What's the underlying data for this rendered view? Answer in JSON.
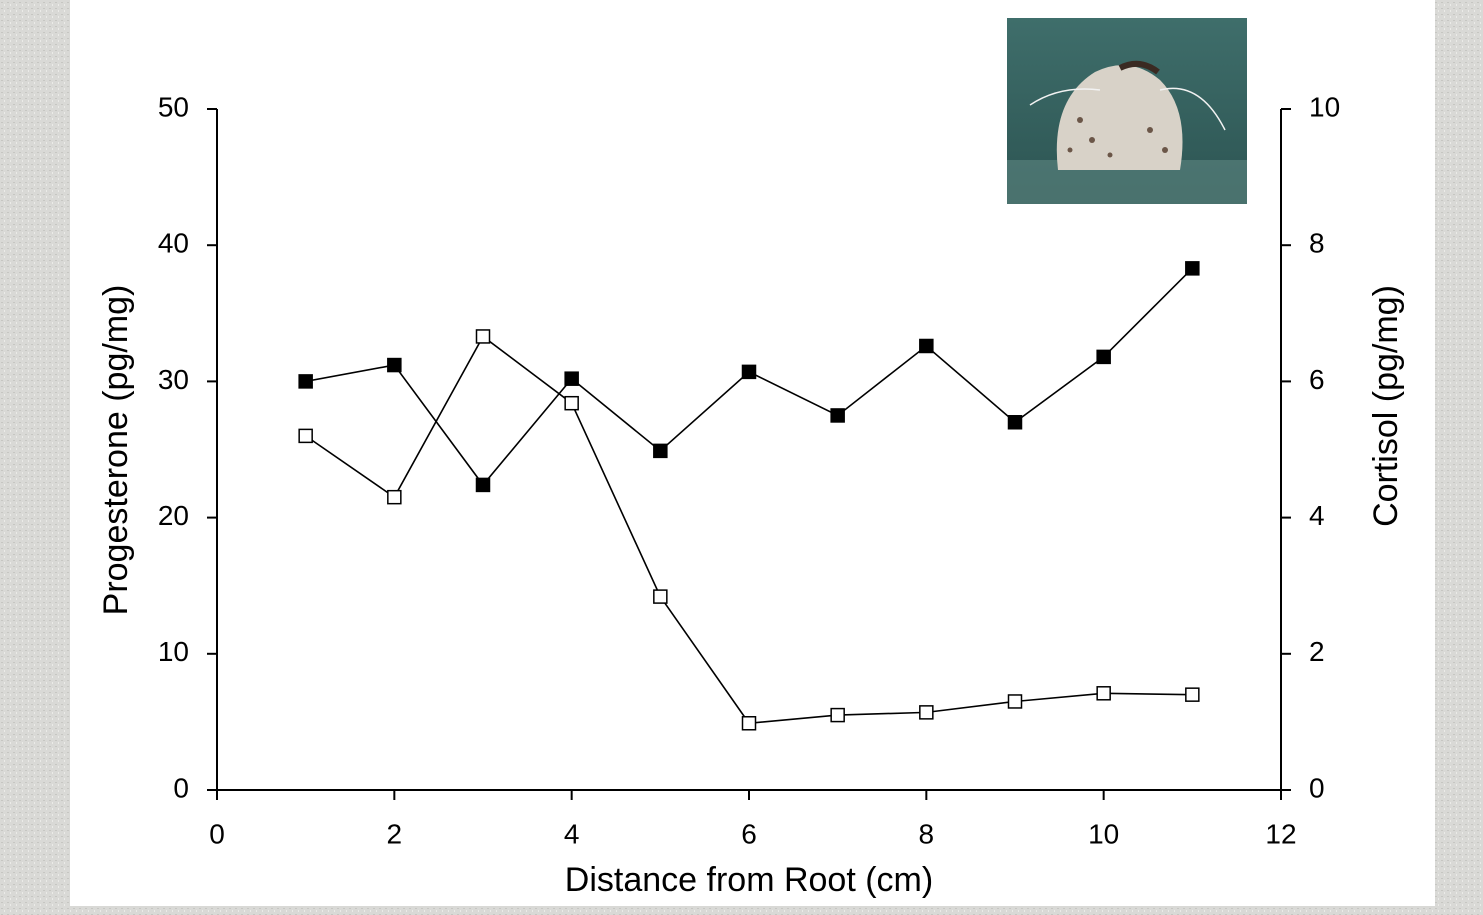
{
  "chart_data": {
    "type": "line",
    "x": [
      1,
      2,
      3,
      4,
      5,
      6,
      7,
      8,
      9,
      10,
      11
    ],
    "xlabel": "Distance from Root (cm)",
    "ylabel": "Progesterone (pg/mg)",
    "y2label": "Cortisol (pg/mg)",
    "xlim": [
      0,
      12
    ],
    "xticks": [
      0,
      2,
      4,
      6,
      8,
      10,
      12
    ],
    "ylim": [
      0,
      50
    ],
    "yticks": [
      0,
      10,
      20,
      30,
      40,
      50
    ],
    "y2lim": [
      0,
      10
    ],
    "y2ticks": [
      0,
      2,
      4,
      6,
      8,
      10
    ],
    "series": [
      {
        "color": "#000000",
        "marker_fill": "#ffffff",
        "axis": "y",
        "values": [
          26,
          21.5,
          33.3,
          28.4,
          14.2,
          4.9,
          5.5,
          5.7,
          6.5,
          7.1,
          7.0
        ]
      },
      {
        "color": "#000000",
        "marker_fill": "#000000",
        "axis": "y2",
        "values": [
          6.0,
          6.24,
          4.48,
          6.04,
          4.98,
          6.14,
          5.5,
          6.52,
          5.4,
          6.36,
          7.66
        ]
      }
    ]
  }
}
